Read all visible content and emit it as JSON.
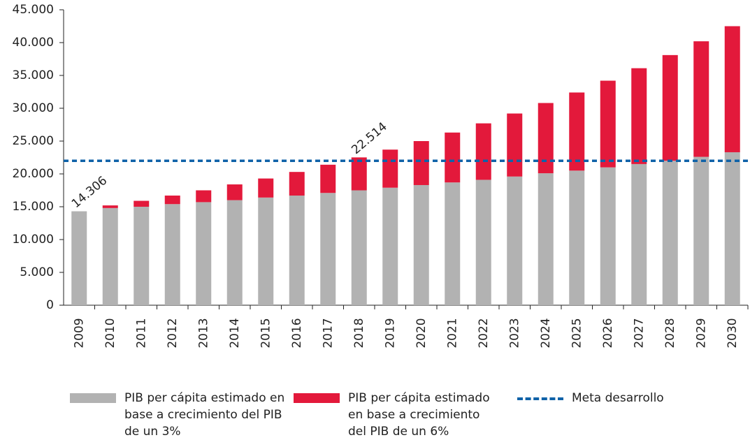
{
  "chart_data": {
    "type": "stacked-bar",
    "categories": [
      "2009",
      "2010",
      "2011",
      "2012",
      "2013",
      "2014",
      "2015",
      "2016",
      "2017",
      "2018",
      "2019",
      "2020",
      "2021",
      "2022",
      "2023",
      "2024",
      "2025",
      "2026",
      "2027",
      "2028",
      "2029",
      "2030"
    ],
    "series": [
      {
        "name": "PIB per cápita estimado en base a crecimiento del PIB de un 3%",
        "color": "#b2b2b2",
        "values": [
          14306,
          14800,
          15000,
          15400,
          15700,
          16000,
          16400,
          16700,
          17100,
          17500,
          17900,
          18300,
          18700,
          19100,
          19600,
          20100,
          20500,
          21000,
          21500,
          22000,
          22600,
          23300
        ]
      },
      {
        "name": "PIB per cápita estimado en base a crecimiento del PIB de un 6%",
        "color": "#e3193b",
        "values": [
          0,
          400,
          900,
          1300,
          1800,
          2400,
          2900,
          3600,
          4300,
          5014,
          5800,
          6700,
          7600,
          8600,
          9600,
          10700,
          11900,
          13200,
          14600,
          16100,
          17600,
          19200
        ]
      }
    ],
    "reference_line": {
      "name": "Meta desarrollo",
      "value": 22000,
      "color": "#0f62a8",
      "style": "dashed"
    },
    "annotations": [
      {
        "text": "14.306",
        "category": "2009"
      },
      {
        "text": "22.514",
        "category": "2018"
      }
    ],
    "ylim": [
      0,
      45000
    ],
    "yticks": [
      0,
      {
        "value": 5000,
        "label": "5.000"
      },
      {
        "value": 10000,
        "label": "10.000"
      },
      {
        "value": 15000,
        "label": "15.000"
      },
      {
        "value": 20000,
        "label": "20.000"
      },
      {
        "value": 25000,
        "label": "25.000"
      },
      {
        "value": 30000,
        "label": "30.000"
      },
      {
        "value": 35000,
        "label": "35.000"
      },
      {
        "value": 40000,
        "label": "40.000"
      },
      {
        "value": 45000,
        "label": "45.000"
      }
    ]
  }
}
